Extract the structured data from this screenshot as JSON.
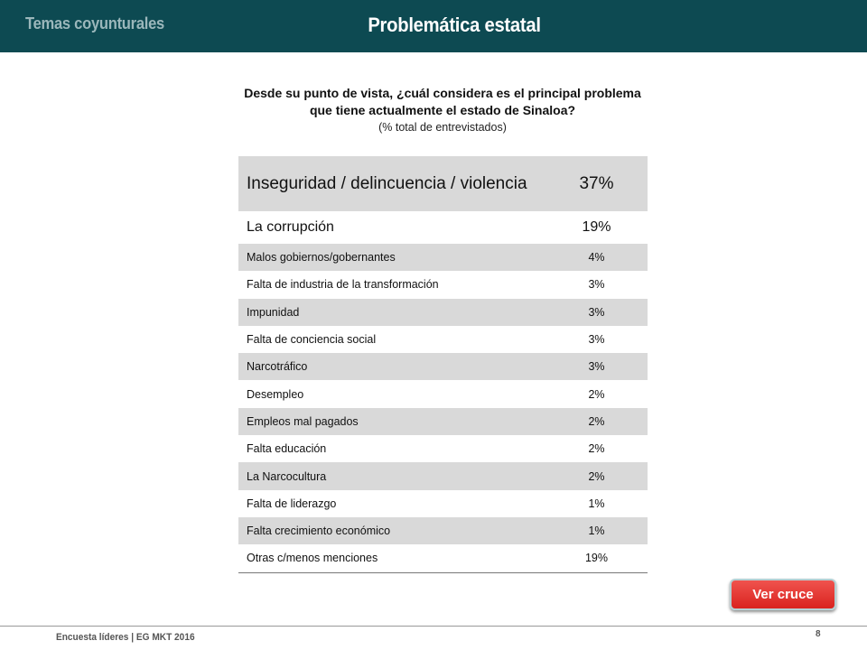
{
  "header": {
    "section": "Temas coyunturales",
    "title": "Problemática estatal",
    "bg_color": "#0d4a52"
  },
  "question": {
    "line1": "Desde su punto de vista, ¿cuál considera es el principal problema",
    "line2": "que tiene actualmente el estado de Sinaloa?",
    "subtitle": "(% total de entrevistados)"
  },
  "table": {
    "rows": [
      {
        "label": "Inseguridad / delincuencia / violencia",
        "value": "37%"
      },
      {
        "label": "La corrupción",
        "value": "19%"
      },
      {
        "label": "Malos gobiernos/gobernantes",
        "value": "4%"
      },
      {
        "label": "Falta de industria de la transformación",
        "value": "3%"
      },
      {
        "label": "Impunidad",
        "value": "3%"
      },
      {
        "label": "Falta de conciencia social",
        "value": "3%"
      },
      {
        "label": "Narcotráfico",
        "value": "3%"
      },
      {
        "label": "Desempleo",
        "value": "2%"
      },
      {
        "label": "Empleos mal pagados",
        "value": "2%"
      },
      {
        "label": "Falta educación",
        "value": "2%"
      },
      {
        "label": "La Narcocultura",
        "value": "2%"
      },
      {
        "label": "Falta de liderazgo",
        "value": "1%"
      },
      {
        "label": "Falta crecimiento económico",
        "value": "1%"
      },
      {
        "label": "Otras c/menos menciones",
        "value": "19%"
      }
    ],
    "shade_color": "#d9d9d9"
  },
  "buttons": {
    "ver_cruce": "Ver cruce",
    "ver_cruce_color": "#e0302b"
  },
  "footer": {
    "text": "Encuesta líderes | EG MKT 2016",
    "page_number": "8"
  }
}
